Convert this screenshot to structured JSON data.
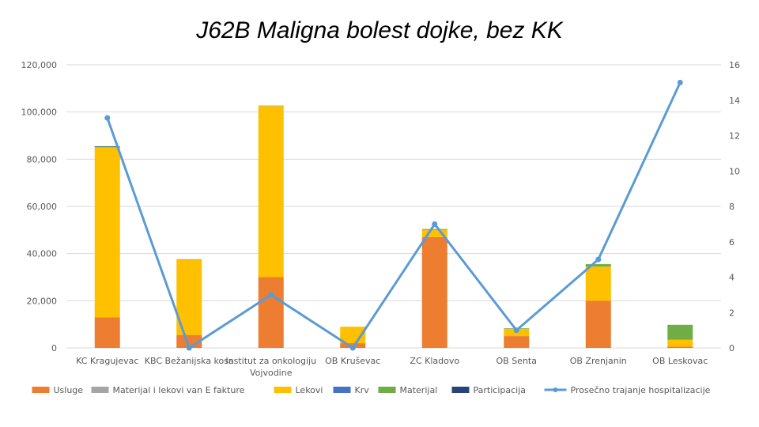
{
  "chart_data": {
    "type": "bar",
    "title": "J62B Maligna bolest dojke, bez KK",
    "categories": [
      [
        "KC Kragujevac"
      ],
      [
        "KBC Bežanijska kosa"
      ],
      [
        "Institut za onkologiju",
        "Vojvodine"
      ],
      [
        "OB Kruševac"
      ],
      [
        "ZC Kladovo"
      ],
      [
        "OB Senta"
      ],
      [
        "OB Zrenjanin"
      ],
      [
        "OB Leskovac"
      ]
    ],
    "ylim": [
      0,
      120000
    ],
    "y_ticks": [
      "0",
      "20,000",
      "40,000",
      "60,000",
      "80,000",
      "100,000",
      "120,000"
    ],
    "y2lim": [
      0,
      16
    ],
    "y2_ticks": [
      "0",
      "2",
      "4",
      "6",
      "8",
      "10",
      "12",
      "14",
      "16"
    ],
    "grid": true,
    "legend_position": "bottom",
    "series": [
      {
        "name": "Usluge",
        "kind": "bar",
        "color": "#ED7D31",
        "values": [
          13000,
          5500,
          30000,
          2000,
          47000,
          5000,
          20000,
          500
        ]
      },
      {
        "name": "Materijal i lekovi van E fakture",
        "kind": "bar",
        "color": "#A5A5A5",
        "values": [
          0,
          0,
          0,
          0,
          0,
          0,
          0,
          0
        ]
      },
      {
        "name": "Lekovi",
        "kind": "bar",
        "color": "#FFC000",
        "values": [
          72000,
          32000,
          72500,
          7000,
          3000,
          3000,
          14500,
          3000
        ]
      },
      {
        "name": "Krv",
        "kind": "bar",
        "color": "#4472C4",
        "values": [
          0,
          0,
          0,
          0,
          0,
          0,
          0,
          0
        ]
      },
      {
        "name": "Materijal",
        "kind": "bar",
        "color": "#70AD47",
        "values": [
          300,
          100,
          200,
          0,
          400,
          300,
          1000,
          6300
        ]
      },
      {
        "name": "Participacija",
        "kind": "bar",
        "color": "#264478",
        "values": [
          200,
          0,
          0,
          0,
          0,
          0,
          0,
          0
        ]
      },
      {
        "name": "Prosečno trajanje hospitalizacije",
        "kind": "line",
        "axis": "right",
        "color": "#5B9BD5",
        "values": [
          13,
          0,
          3,
          0,
          7,
          1,
          5,
          15
        ]
      }
    ]
  }
}
